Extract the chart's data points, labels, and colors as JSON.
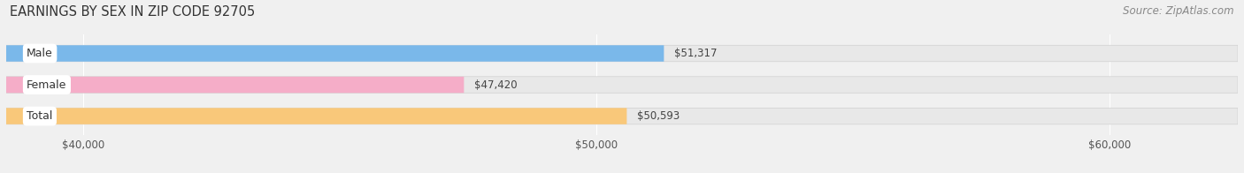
{
  "title": "EARNINGS BY SEX IN ZIP CODE 92705",
  "source": "Source: ZipAtlas.com",
  "categories": [
    "Male",
    "Female",
    "Total"
  ],
  "values": [
    51317,
    47420,
    50593
  ],
  "bar_colors": [
    "#7ab8ea",
    "#f5adc8",
    "#f9c87a"
  ],
  "value_labels": [
    "$51,317",
    "$47,420",
    "$50,593"
  ],
  "xmin": 38500,
  "xmax": 62500,
  "xticks": [
    40000,
    50000,
    60000
  ],
  "xtick_labels": [
    "$40,000",
    "$50,000",
    "$60,000"
  ],
  "background_color": "#f0f0f0",
  "bar_bg_color": "#e8e8e8",
  "title_fontsize": 10.5,
  "source_fontsize": 8.5,
  "tick_fontsize": 8.5,
  "bar_height": 0.52,
  "value_label_fontsize": 8.5,
  "category_label_fontsize": 9
}
